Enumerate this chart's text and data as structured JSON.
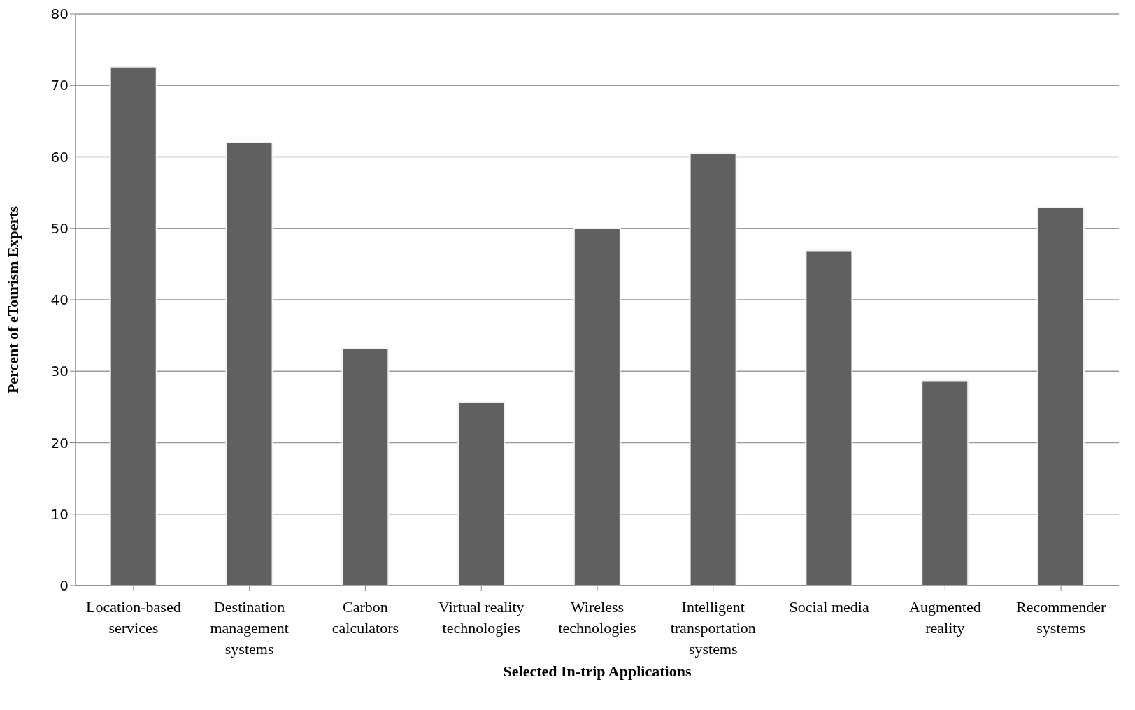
{
  "chart_data": {
    "type": "bar",
    "xlabel": "Selected In-trip Applications",
    "ylabel": "Percent of  eTourism Experts",
    "categories": [
      "Location-based services",
      "Destination management systems",
      "Carbon calculators",
      "Virtual reality technologies",
      "Wireless technologies",
      "Intelligent transportation systems",
      "Social media",
      "Augmented reality",
      "Recommender systems"
    ],
    "values": [
      72.6,
      62.0,
      33.2,
      25.7,
      50.0,
      60.5,
      46.9,
      28.7,
      52.9
    ],
    "color": "#606060",
    "ylim": [
      0,
      80
    ],
    "yticks": [
      0,
      10,
      20,
      30,
      40,
      50,
      60,
      70,
      80
    ],
    "grid": "y"
  }
}
